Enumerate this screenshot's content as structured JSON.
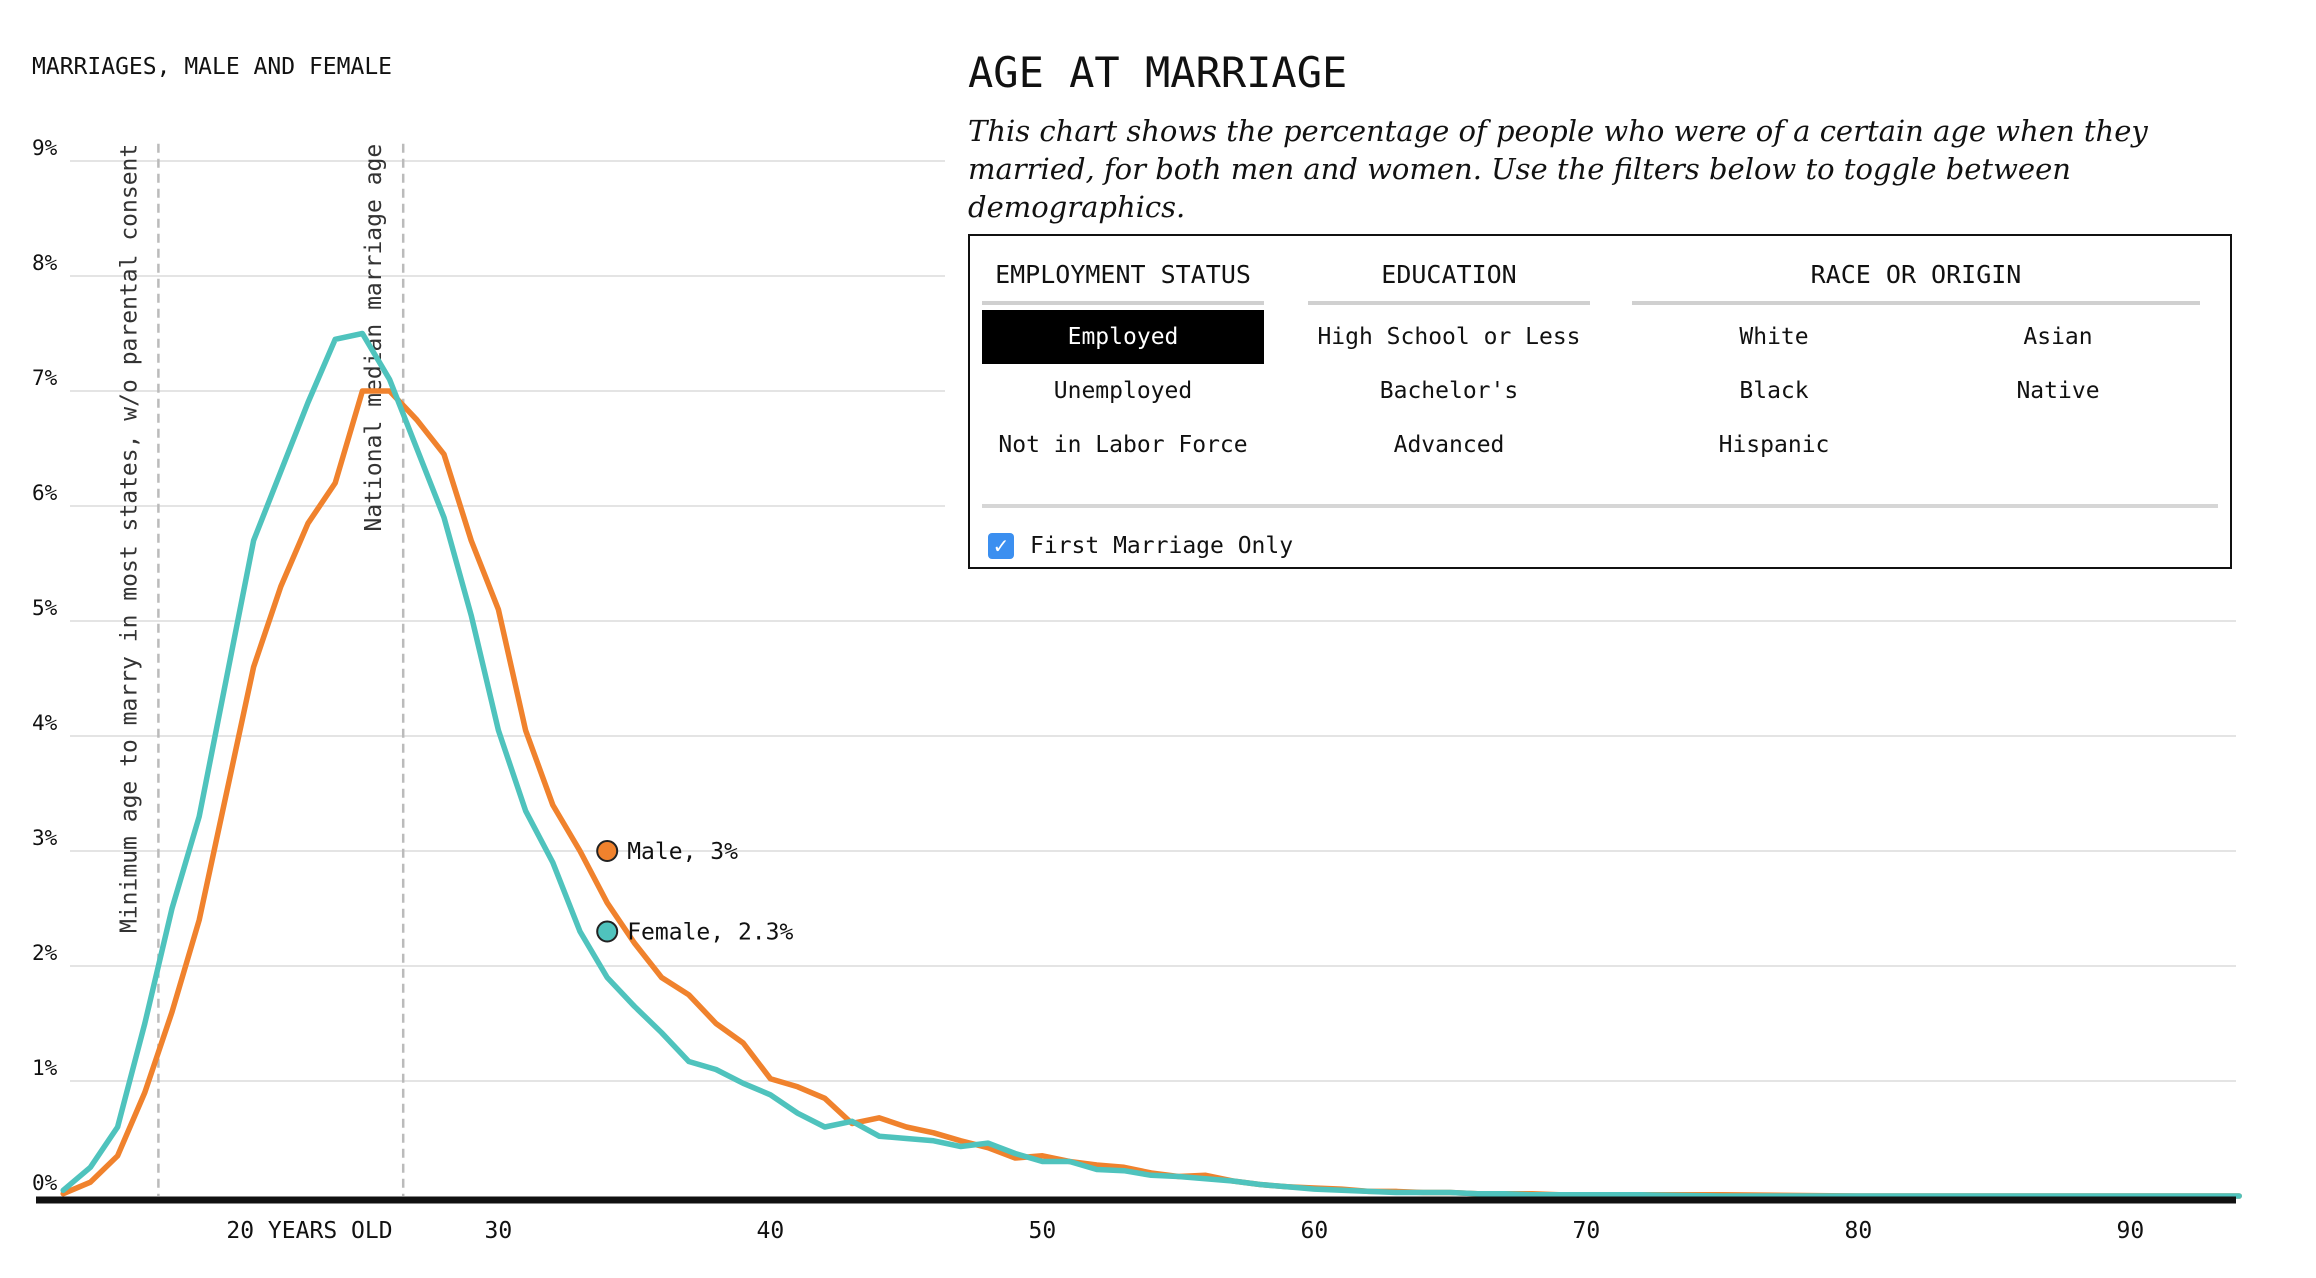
{
  "panel": {
    "title": "AGE AT MARRIAGE",
    "description": "This chart shows the percentage of people who were of a certain age when they married, for both men and women. Use the filters below to toggle between demographics."
  },
  "filters": {
    "employment": {
      "heading": "EMPLOYMENT STATUS",
      "options": [
        "Employed",
        "Unemployed",
        "Not in Labor Force"
      ],
      "selected": "Employed"
    },
    "education": {
      "heading": "EDUCATION",
      "options": [
        "High School or Less",
        "Bachelor's",
        "Advanced"
      ]
    },
    "race": {
      "heading": "RACE OR ORIGIN",
      "options": [
        "White",
        "Asian",
        "Black",
        "Native",
        "Hispanic"
      ]
    },
    "first_marriage": {
      "label": "First Marriage Only",
      "checked": true
    }
  },
  "colors": {
    "male": "#f0822d",
    "female": "#4fc3bd",
    "axis": "#111111",
    "grid": "#dcdcdc",
    "refline": "#bbbbbb"
  },
  "chart_data": {
    "type": "line",
    "title": "MARRIAGES, MALE AND FEMALE",
    "xlim": [
      13,
      94
    ],
    "ylim": [
      0,
      9
    ],
    "y_ticks": [
      0,
      1,
      2,
      3,
      4,
      5,
      6,
      7,
      8,
      9
    ],
    "y_tick_labels": [
      "0%",
      "1%",
      "2%",
      "3%",
      "4%",
      "5%",
      "6%",
      "7%",
      "8%",
      "9%"
    ],
    "x_ticks": [
      20,
      30,
      40,
      50,
      60,
      70,
      80,
      90
    ],
    "x_tick_labels": [
      "20 YEARS OLD",
      "30",
      "40",
      "50",
      "60",
      "70",
      "80",
      "90"
    ],
    "grid": true,
    "reference_lines": [
      {
        "x": 17.5,
        "label": "Minimum age to marry in most states, w/o parental consent"
      },
      {
        "x": 26.5,
        "label": "National median marriage age"
      }
    ],
    "series": [
      {
        "name": "Male",
        "color": "#f0822d",
        "x": [
          14,
          15,
          16,
          17,
          18,
          19,
          20,
          21,
          22,
          23,
          24,
          25,
          26,
          27,
          28,
          29,
          30,
          31,
          32,
          33,
          34,
          35,
          36,
          37,
          38,
          39,
          40,
          41,
          42,
          43,
          44,
          45,
          46,
          47,
          48,
          49,
          50,
          51,
          52,
          53,
          54,
          55,
          56,
          57,
          58,
          59,
          60,
          61,
          62,
          63,
          64,
          65,
          66,
          67,
          68,
          69,
          70,
          72,
          75,
          80,
          85,
          90,
          94
        ],
        "values": [
          0.02,
          0.12,
          0.35,
          0.9,
          1.6,
          2.4,
          3.5,
          4.6,
          5.3,
          5.85,
          6.2,
          7.0,
          7.0,
          6.75,
          6.45,
          5.7,
          5.1,
          4.05,
          3.4,
          3.0,
          2.55,
          2.2,
          1.9,
          1.75,
          1.5,
          1.33,
          1.02,
          0.95,
          0.85,
          0.63,
          0.68,
          0.6,
          0.55,
          0.48,
          0.42,
          0.33,
          0.35,
          0.3,
          0.27,
          0.25,
          0.2,
          0.17,
          0.18,
          0.13,
          0.1,
          0.08,
          0.07,
          0.06,
          0.04,
          0.04,
          0.03,
          0.03,
          0.02,
          0.02,
          0.02,
          0.01,
          0.01,
          0.01,
          0.01,
          0.0,
          0.0,
          0.0,
          0.0
        ]
      },
      {
        "name": "Female",
        "color": "#4fc3bd",
        "x": [
          14,
          15,
          16,
          17,
          18,
          19,
          20,
          21,
          22,
          23,
          24,
          25,
          26,
          27,
          28,
          29,
          30,
          31,
          32,
          33,
          34,
          35,
          36,
          37,
          38,
          39,
          40,
          41,
          42,
          43,
          44,
          45,
          46,
          47,
          48,
          49,
          50,
          51,
          52,
          53,
          54,
          55,
          56,
          57,
          58,
          59,
          60,
          61,
          62,
          63,
          64,
          65,
          66,
          67,
          68,
          69,
          70,
          72,
          75,
          80,
          85,
          90,
          94
        ],
        "values": [
          0.05,
          0.25,
          0.6,
          1.5,
          2.5,
          3.3,
          4.5,
          5.7,
          6.3,
          6.9,
          7.45,
          7.5,
          7.1,
          6.5,
          5.9,
          5.05,
          4.05,
          3.35,
          2.9,
          2.3,
          1.9,
          1.65,
          1.42,
          1.17,
          1.1,
          0.98,
          0.88,
          0.72,
          0.6,
          0.65,
          0.52,
          0.5,
          0.48,
          0.43,
          0.46,
          0.37,
          0.3,
          0.3,
          0.23,
          0.22,
          0.18,
          0.17,
          0.15,
          0.13,
          0.1,
          0.08,
          0.06,
          0.05,
          0.04,
          0.03,
          0.03,
          0.03,
          0.02,
          0.02,
          0.01,
          0.01,
          0.01,
          0.01,
          0.0,
          0.0,
          0.0,
          0.0,
          0.0
        ]
      }
    ],
    "annotations": [
      {
        "series": "Male",
        "x": 34,
        "y": 3.0,
        "label": "Male, 3%"
      },
      {
        "series": "Female",
        "x": 34,
        "y": 2.3,
        "label": "Female, 2.3%"
      }
    ]
  }
}
